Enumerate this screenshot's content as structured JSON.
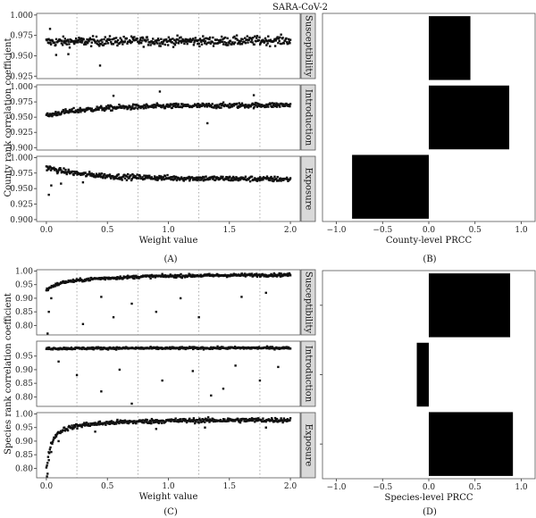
{
  "figure": {
    "title": "SARA-CoV-2",
    "panel_labels": [
      "(A)",
      "(B)",
      "(C)",
      "(D)"
    ]
  },
  "chart_data": [
    {
      "id": "A",
      "type": "scatter",
      "xlabel": "Weight value",
      "ylabel": "County rank correlation coefficient",
      "xlim": [
        -0.08,
        2.08
      ],
      "xticks": [
        0.0,
        0.5,
        1.0,
        1.5,
        2.0
      ],
      "xtick_labels": [
        "0.0",
        "0.5",
        "1.0",
        "1.5",
        "2.0"
      ],
      "grid_x": [
        0.25,
        0.75,
        1.25,
        1.75
      ],
      "facets": [
        {
          "strip": "Susceptibility",
          "ylim": [
            0.922,
            1.002
          ],
          "yticks": [
            0.925,
            0.95,
            0.975,
            1.0
          ],
          "ytick_labels": [
            "0.925",
            "0.950",
            "0.975",
            "1.000"
          ],
          "trend": {
            "x": [
              0.0,
              0.5,
              1.0,
              1.5,
              2.0
            ],
            "y": [
              0.967,
              0.968,
              0.968,
              0.968,
              0.969
            ]
          },
          "spread": 0.004,
          "outliers": [
            [
              0.03,
              0.983
            ],
            [
              0.08,
              0.951
            ],
            [
              0.18,
              0.952
            ],
            [
              0.44,
              0.938
            ]
          ]
        },
        {
          "strip": "Introduction",
          "ylim": [
            0.896,
            1.003
          ],
          "yticks": [
            0.9,
            0.925,
            0.95,
            0.975,
            1.0
          ],
          "ytick_labels": [
            "0.900",
            "0.925",
            "0.950",
            "0.975",
            "1.000"
          ],
          "trend": {
            "x": [
              0.0,
              0.1,
              0.3,
              0.6,
              1.0,
              1.5,
              2.0
            ],
            "y": [
              0.952,
              0.957,
              0.962,
              0.966,
              0.968,
              0.969,
              0.97
            ]
          },
          "spread": 0.003,
          "outliers": [
            [
              0.93,
              0.992
            ],
            [
              1.32,
              0.94
            ],
            [
              0.55,
              0.985
            ],
            [
              1.7,
              0.986
            ]
          ]
        },
        {
          "strip": "Exposure",
          "ylim": [
            0.897,
            1.002
          ],
          "yticks": [
            0.9,
            0.925,
            0.95,
            0.975,
            1.0
          ],
          "ytick_labels": [
            "0.900",
            "0.925",
            "0.950",
            "0.975",
            "1.000"
          ],
          "trend": {
            "x": [
              0.0,
              0.1,
              0.3,
              0.6,
              1.0,
              1.5,
              2.0
            ],
            "y": [
              0.984,
              0.979,
              0.973,
              0.969,
              0.967,
              0.966,
              0.965
            ]
          },
          "spread": 0.003,
          "outliers": [
            [
              0.02,
              0.94
            ],
            [
              0.04,
              0.955
            ],
            [
              0.12,
              0.958
            ],
            [
              0.3,
              0.96
            ]
          ]
        }
      ]
    },
    {
      "id": "B",
      "type": "bar",
      "orientation": "horizontal",
      "xlabel": "County-level PRCC",
      "xlim": [
        -1.15,
        1.15
      ],
      "xticks": [
        -1.0,
        -0.5,
        0.0,
        0.5,
        1.0
      ],
      "xtick_labels": [
        "−1.0",
        "−0.5",
        "0.0",
        "0.5",
        "1.0"
      ],
      "categories": [
        "Susceptibility",
        "Introduction",
        "Exposure"
      ],
      "values": [
        0.45,
        0.87,
        -0.83
      ]
    },
    {
      "id": "C",
      "type": "scatter",
      "xlabel": "Weight value",
      "ylabel": "Species rank correlation coefficient",
      "xlim": [
        -0.08,
        2.08
      ],
      "xticks": [
        0.0,
        0.5,
        1.0,
        1.5,
        2.0
      ],
      "xtick_labels": [
        "0.0",
        "0.5",
        "1.0",
        "1.5",
        "2.0"
      ],
      "grid_x": [
        0.25,
        0.75,
        1.25,
        1.75
      ],
      "facets": [
        {
          "strip": "Susceptibility",
          "ylim": [
            0.765,
            1.005
          ],
          "yticks": [
            0.8,
            0.85,
            0.9,
            0.95,
            1.0
          ],
          "ytick_labels": [
            "0.80",
            "0.85",
            "0.90",
            "0.95",
            "1.00"
          ],
          "trend": {
            "x": [
              0.0,
              0.05,
              0.15,
              0.4,
              0.8,
              1.2,
              1.6,
              2.0
            ],
            "y": [
              0.93,
              0.945,
              0.96,
              0.972,
              0.98,
              0.983,
              0.985,
              0.986
            ]
          },
          "spread": 0.004,
          "outliers": [
            [
              0.01,
              0.77
            ],
            [
              0.02,
              0.85
            ],
            [
              0.04,
              0.9
            ],
            [
              0.3,
              0.805
            ],
            [
              0.55,
              0.83
            ],
            [
              0.9,
              0.85
            ],
            [
              1.25,
              0.83
            ],
            [
              0.7,
              0.88
            ],
            [
              1.1,
              0.9
            ],
            [
              1.6,
              0.905
            ],
            [
              1.8,
              0.92
            ],
            [
              0.45,
              0.905
            ]
          ]
        },
        {
          "strip": "Introduction",
          "ylim": [
            0.765,
            1.005
          ],
          "yticks": [
            0.8,
            0.85,
            0.9,
            0.95
          ],
          "ytick_labels": [
            "0.80",
            "0.85",
            "0.90",
            "0.95"
          ],
          "trend": {
            "x": [
              0.0,
              0.5,
              1.0,
              1.5,
              2.0
            ],
            "y": [
              0.978,
              0.979,
              0.979,
              0.98,
              0.98
            ]
          },
          "spread": 0.003,
          "outliers": [
            [
              0.7,
              0.775
            ],
            [
              0.45,
              0.82
            ],
            [
              1.35,
              0.805
            ],
            [
              1.45,
              0.83
            ],
            [
              0.25,
              0.88
            ],
            [
              0.95,
              0.86
            ],
            [
              1.75,
              0.86
            ],
            [
              1.2,
              0.895
            ],
            [
              0.6,
              0.9
            ],
            [
              1.9,
              0.91
            ],
            [
              0.1,
              0.93
            ],
            [
              1.55,
              0.915
            ]
          ]
        },
        {
          "strip": "Exposure",
          "ylim": [
            0.765,
            1.005
          ],
          "yticks": [
            0.8,
            0.85,
            0.9,
            0.95,
            1.0
          ],
          "ytick_labels": [
            "0.80",
            "0.85",
            "0.90",
            "0.95",
            "1.00"
          ],
          "trend": {
            "x": [
              0.0,
              0.03,
              0.08,
              0.15,
              0.3,
              0.6,
              1.0,
              1.5,
              2.0
            ],
            "y": [
              0.8,
              0.88,
              0.925,
              0.945,
              0.96,
              0.97,
              0.975,
              0.977,
              0.978
            ]
          },
          "spread": 0.006,
          "outliers": [
            [
              0.005,
              0.77
            ],
            [
              0.01,
              0.78
            ],
            [
              0.02,
              0.83
            ],
            [
              0.04,
              0.86
            ],
            [
              0.1,
              0.9
            ],
            [
              0.4,
              0.935
            ],
            [
              0.9,
              0.945
            ],
            [
              1.3,
              0.95
            ],
            [
              1.8,
              0.95
            ]
          ]
        }
      ]
    },
    {
      "id": "D",
      "type": "bar",
      "orientation": "horizontal",
      "xlabel": "Species-level PRCC",
      "xlim": [
        -1.15,
        1.15
      ],
      "xticks": [
        -1.0,
        -0.5,
        0.0,
        0.5,
        1.0
      ],
      "xtick_labels": [
        "−1.0",
        "−0.5",
        "0.0",
        "0.5",
        "1.0"
      ],
      "categories": [
        "Susceptibility",
        "Introduction",
        "Exposure"
      ],
      "values": [
        0.88,
        -0.13,
        0.91
      ]
    }
  ]
}
